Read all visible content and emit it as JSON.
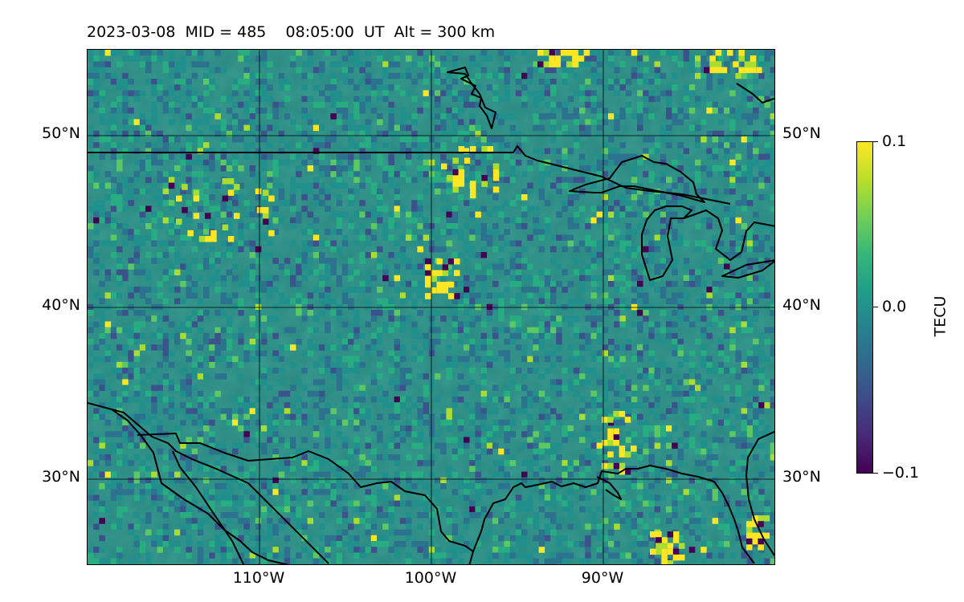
{
  "title": "2023-03-08  MID = 485    08:05:00  UT  Alt = 300 km",
  "map": {
    "lon_range": [
      -120,
      -80
    ],
    "lat_range": [
      25,
      55
    ],
    "background_color": "#2a8a82",
    "lat_labels": [
      "50°N",
      "40°N",
      "30°N"
    ],
    "lon_labels": [
      "110°W",
      "100°W",
      "90°W"
    ],
    "gridlines": true,
    "coastlines": true
  },
  "colorbar": {
    "label": "TECU",
    "colormap": "viridis",
    "ticks": [
      "0.1",
      "0.0",
      "−0.1"
    ],
    "vmin": -0.1,
    "vmax": 0.1
  }
}
